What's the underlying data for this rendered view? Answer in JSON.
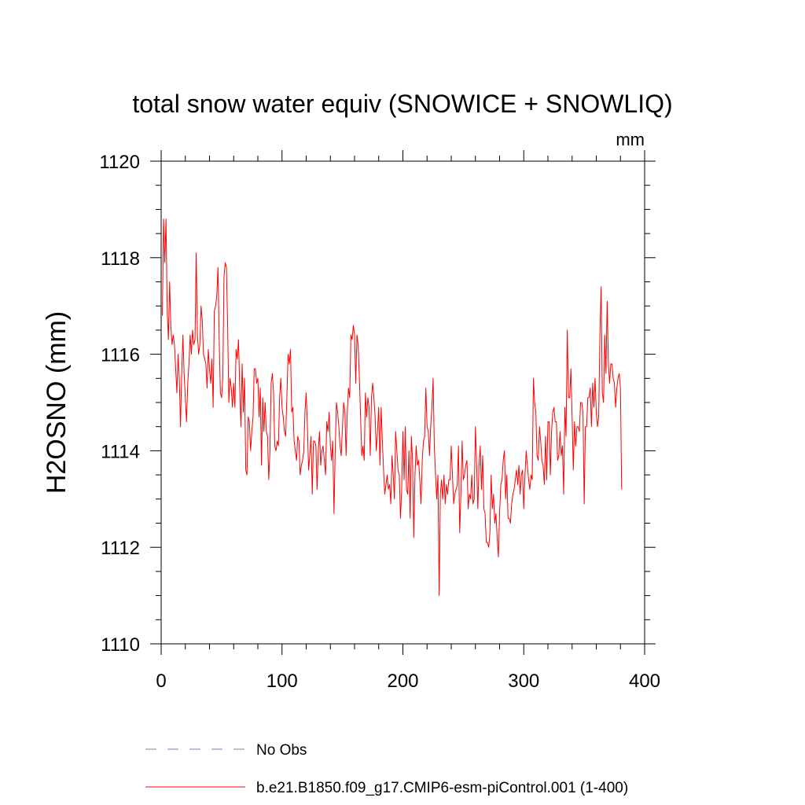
{
  "chart_data": {
    "type": "line",
    "title": "total snow water equiv (SNOWICE + SNOWLIQ)",
    "units_label": "mm",
    "ylabel": "H2OSNO  (mm)",
    "xlabel": "",
    "xlim": [
      0,
      400
    ],
    "ylim": [
      1110,
      1120
    ],
    "x_ticks": [
      0,
      100,
      200,
      300,
      400
    ],
    "x_tick_labels": [
      "0",
      "100",
      "200",
      "300",
      "400"
    ],
    "y_ticks": [
      1110,
      1112,
      1114,
      1116,
      1118,
      1120
    ],
    "y_tick_labels": [
      "1110",
      "1112",
      "1114",
      "1116",
      "1118",
      "1120"
    ],
    "grid": false,
    "legend_position": "bottom",
    "series": [
      {
        "name": "No Obs",
        "color": "#7777cc",
        "style": "dashed",
        "x_start": 1,
        "values": []
      },
      {
        "name": "b.e21.B1850.f09_g17.CMIP6-esm-piControl.001 (1-400)",
        "color": "#ff0000",
        "style": "solid",
        "x_start": 1,
        "values": [
          1116.8,
          1118.8,
          1117.9,
          1118.8,
          1116.9,
          1116.3,
          1117.5,
          1116.6,
          1116.2,
          1116.4,
          1116.2,
          1115.7,
          1115.2,
          1116.0,
          1115.5,
          1114.5,
          1115.6,
          1116.4,
          1115.6,
          1115.1,
          1114.6,
          1115.4,
          1115.8,
          1116.4,
          1116.0,
          1116.5,
          1116.2,
          1116.3,
          1118.1,
          1116.4,
          1116.0,
          1116.2,
          1117.0,
          1116.7,
          1116.0,
          1115.9,
          1115.8,
          1115.3,
          1116.1,
          1115.7,
          1115.4,
          1115.9,
          1114.9,
          1116.9,
          1117.0,
          1117.2,
          1117.8,
          1116.3,
          1115.2,
          1115.1,
          1115.5,
          1117.6,
          1117.9,
          1117.8,
          1116.6,
          1115.0,
          1115.5,
          1115.3,
          1114.9,
          1115.4,
          1114.9,
          1116.1,
          1115.9,
          1116.3,
          1115.3,
          1114.5,
          1115.8,
          1114.8,
          1115.5,
          1113.6,
          1113.5,
          1114.7,
          1114.6,
          1114.0,
          1114.4,
          1114.7,
          1115.7,
          1115.7,
          1115.4,
          1115.5,
          1114.7,
          1115.3,
          1113.7,
          1115.1,
          1114.4,
          1115.0,
          1114.4,
          1114.3,
          1113.4,
          1114.0,
          1115.4,
          1115.6,
          1115.2,
          1114.1,
          1114.0,
          1114.2,
          1114.1,
          1115.1,
          1115.5,
          1114.9,
          1114.7,
          1114.4,
          1114.3,
          1115.1,
          1116.0,
          1115.8,
          1116.1,
          1114.8,
          1114.9,
          1114.2,
          1114.0,
          1113.8,
          1114.3,
          1114.2,
          1113.5,
          1113.7,
          1113.8,
          1114.0,
          1114.8,
          1115.2,
          1114.5,
          1113.6,
          1113.9,
          1114.3,
          1113.1,
          1114.2,
          1114.2,
          1114.1,
          1113.2,
          1114.0,
          1114.4,
          1113.7,
          1114.0,
          1114.1,
          1113.8,
          1113.5,
          1114.6,
          1114.4,
          1114.8,
          1114.1,
          1113.8,
          1114.2,
          1112.7,
          1114.0,
          1115.0,
          1114.8,
          1114.5,
          1114.1,
          1113.9,
          1114.5,
          1115.0,
          1114.8,
          1113.9,
          1114.8,
          1115.3,
          1115.1,
          1116.4,
          1116.3,
          1116.6,
          1116.4,
          1115.4,
          1116.4,
          1116.2,
          1115.5,
          1114.7,
          1113.9,
          1114.1,
          1113.8,
          1115.2,
          1114.7,
          1115.1,
          1114.9,
          1113.9,
          1115.1,
          1115.4,
          1115.1,
          1114.7,
          1114.0,
          1114.4,
          1114.9,
          1113.7,
          1114.9,
          1114.2,
          1113.6,
          1113.1,
          1113.3,
          1113.5,
          1113.2,
          1113.3,
          1112.9,
          1113.9,
          1113.5,
          1113.0,
          1114.4,
          1114.0,
          1113.6,
          1113.5,
          1112.6,
          1113.2,
          1114.4,
          1113.4,
          1114.5,
          1113.2,
          1113.1,
          1114.0,
          1112.6,
          1114.3,
          1113.8,
          1112.2,
          1113.5,
          1114.1,
          1113.7,
          1113.8,
          1113.4,
          1112.9,
          1113.8,
          1114.2,
          1114.3,
          1115.3,
          1114.5,
          1114.4,
          1113.9,
          1114.5,
          1114.9,
          1115.5,
          1114.1,
          1113.5,
          1113.0,
          1113.5,
          1111.0,
          1113.1,
          1113.4,
          1113.0,
          1113.5,
          1112.9,
          1113.3,
          1113.1,
          1113.4,
          1113.4,
          1114.1,
          1113.5,
          1112.9,
          1113.1,
          1113.2,
          1113.3,
          1114.1,
          1112.3,
          1113.1,
          1114.2,
          1113.4,
          1113.5,
          1113.7,
          1113.8,
          1112.8,
          1113.1,
          1113.0,
          1113.5,
          1112.9,
          1113.0,
          1114.5,
          1113.7,
          1112.8,
          1113.7,
          1114.1,
          1113.2,
          1113.9,
          1112.8,
          1112.7,
          1112.1,
          1112.1,
          1112.0,
          1112.3,
          1113.5,
          1112.8,
          1113.1,
          1112.5,
          1112.7,
          1112.2,
          1111.8,
          1112.7,
          1113.3,
          1113.4,
          1113.8,
          1114.0,
          1113.0,
          1113.5,
          1112.6,
          1112.6,
          1112.5,
          1112.9,
          1113.1,
          1113.2,
          1113.4,
          1113.6,
          1113.3,
          1113.7,
          1113.1,
          1113.5,
          1113.6,
          1112.8,
          1113.5,
          1114.0,
          1113.7,
          1113.4,
          1113.2,
          1113.5,
          1113.4,
          1115.5,
          1115.0,
          1114.8,
          1113.9,
          1113.8,
          1114.5,
          1114.2,
          1113.8,
          1113.7,
          1113.3,
          1114.3,
          1113.4,
          1114.6,
          1114.6,
          1113.5,
          1114.4,
          1114.8,
          1114.9,
          1114.6,
          1114.6,
          1113.8,
          1113.9,
          1114.4,
          1113.9,
          1114.1,
          1113.1,
          1114.9,
          1114.3,
          1116.5,
          1115.1,
          1115.1,
          1115.7,
          1114.7,
          1113.6,
          1114.6,
          1114.1,
          1114.5,
          1114.5,
          1114.4,
          1115.0,
          1115.0,
          1114.8,
          1112.9,
          1114.5,
          1114.5,
          1115.1,
          1115.1,
          1115.3,
          1114.5,
          1115.4,
          1114.9,
          1115.5,
          1114.8,
          1114.5,
          1114.7,
          1116.4,
          1117.4,
          1115.2,
          1115.0,
          1116.4,
          1115.6,
          1117.1,
          1115.8,
          1115.4,
          1115.8,
          1115.8,
          1115.5,
          1115.4,
          1114.9,
          1115.3,
          1115.5,
          1115.6,
          1115.3,
          1113.2
        ]
      }
    ]
  }
}
